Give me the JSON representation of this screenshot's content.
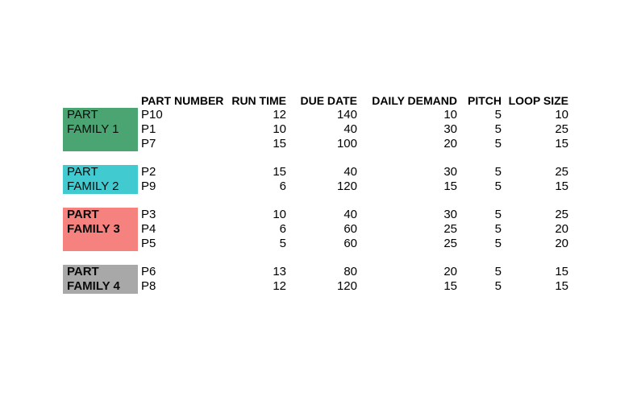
{
  "page": {
    "background": "#ffffff"
  },
  "table": {
    "headers": {
      "part_number": "PART NUMBER",
      "run_time": "RUN TIME",
      "due_date": "DUE DATE",
      "daily_demand": "DAILY DEMAND",
      "pitch": "PITCH",
      "loop_size": "LOOP SIZE"
    },
    "groups": [
      {
        "label_lines": [
          "PART",
          "FAMILY 1"
        ],
        "color": "#4BA573",
        "label_bold": false,
        "rows": [
          {
            "part": "P10",
            "run_time": "12",
            "due_date": "140",
            "daily_demand": "10",
            "pitch": "5",
            "loop_size": "10"
          },
          {
            "part": "P1",
            "run_time": "10",
            "due_date": "40",
            "daily_demand": "30",
            "pitch": "5",
            "loop_size": "25"
          },
          {
            "part": "P7",
            "run_time": "15",
            "due_date": "100",
            "daily_demand": "20",
            "pitch": "5",
            "loop_size": "15"
          }
        ]
      },
      {
        "label_lines": [
          "PART",
          "FAMILY 2"
        ],
        "color": "#41CBD0",
        "label_bold": false,
        "rows": [
          {
            "part": "P2",
            "run_time": "15",
            "due_date": "40",
            "daily_demand": "30",
            "pitch": "5",
            "loop_size": "25"
          },
          {
            "part": "P9",
            "run_time": "6",
            "due_date": "120",
            "daily_demand": "15",
            "pitch": "5",
            "loop_size": "15"
          }
        ]
      },
      {
        "label_lines": [
          "PART",
          "FAMILY 3"
        ],
        "color": "#F68280",
        "label_bold": true,
        "rows": [
          {
            "part": "P3",
            "run_time": "10",
            "due_date": "40",
            "daily_demand": "30",
            "pitch": "5",
            "loop_size": "25"
          },
          {
            "part": "P4",
            "run_time": "6",
            "due_date": "60",
            "daily_demand": "25",
            "pitch": "5",
            "loop_size": "20"
          },
          {
            "part": "P5",
            "run_time": "5",
            "due_date": "60",
            "daily_demand": "25",
            "pitch": "5",
            "loop_size": "20"
          }
        ]
      },
      {
        "label_lines": [
          "PART",
          "FAMILY 4"
        ],
        "color": "#A8A8A8",
        "label_bold": true,
        "rows": [
          {
            "part": "P6",
            "run_time": "13",
            "due_date": "80",
            "daily_demand": "20",
            "pitch": "5",
            "loop_size": "15"
          },
          {
            "part": "P8",
            "run_time": "12",
            "due_date": "120",
            "daily_demand": "15",
            "pitch": "5",
            "loop_size": "15"
          }
        ]
      }
    ]
  }
}
